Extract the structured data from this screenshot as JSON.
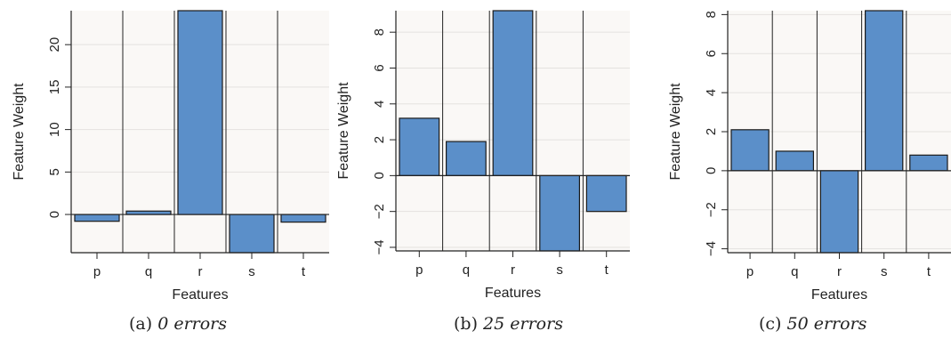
{
  "colors": {
    "bar_fill": "#5b8fc9",
    "bar_stroke": "#1a1a1a",
    "panel_bg": "#faf8f6",
    "axis": "#222222"
  },
  "chart_data": [
    {
      "type": "bar",
      "categories": [
        "p",
        "q",
        "r",
        "s",
        "t"
      ],
      "values": [
        -0.8,
        0.4,
        24,
        -4.5,
        -0.9
      ],
      "xlabel": "Features",
      "ylabel": "Feature Weight",
      "ylim": [
        -4.5,
        24
      ],
      "yticks": [
        0,
        5,
        10,
        15,
        20
      ],
      "ytick_labels": [
        "0",
        "5",
        "10",
        "15",
        "20"
      ],
      "grid": "horizontal",
      "caption_tag": "(a)",
      "caption_text": "0 errors"
    },
    {
      "type": "bar",
      "categories": [
        "p",
        "q",
        "r",
        "s",
        "t"
      ],
      "values": [
        3.2,
        1.9,
        9.2,
        -4.2,
        -2.0
      ],
      "xlabel": "Features",
      "ylabel": "Feature Weight",
      "ylim": [
        -4.2,
        9.2
      ],
      "yticks": [
        -4,
        -2,
        0,
        2,
        4,
        6,
        8
      ],
      "ytick_labels": [
        "−4",
        "−2",
        "0",
        "2",
        "4",
        "6",
        "8"
      ],
      "grid": "horizontal",
      "caption_tag": "(b)",
      "caption_text": "25 errors"
    },
    {
      "type": "bar",
      "categories": [
        "p",
        "q",
        "r",
        "s",
        "t"
      ],
      "values": [
        2.1,
        1.0,
        -4.2,
        8.2,
        0.8
      ],
      "xlabel": "Features",
      "ylabel": "Feature Weight",
      "ylim": [
        -4.2,
        8.2
      ],
      "yticks": [
        -4,
        -2,
        0,
        2,
        4,
        6,
        8
      ],
      "ytick_labels": [
        "−4",
        "−2",
        "0",
        "2",
        "4",
        "6",
        "8"
      ],
      "grid": "horizontal",
      "caption_tag": "(c)",
      "caption_text": "50 errors"
    }
  ]
}
